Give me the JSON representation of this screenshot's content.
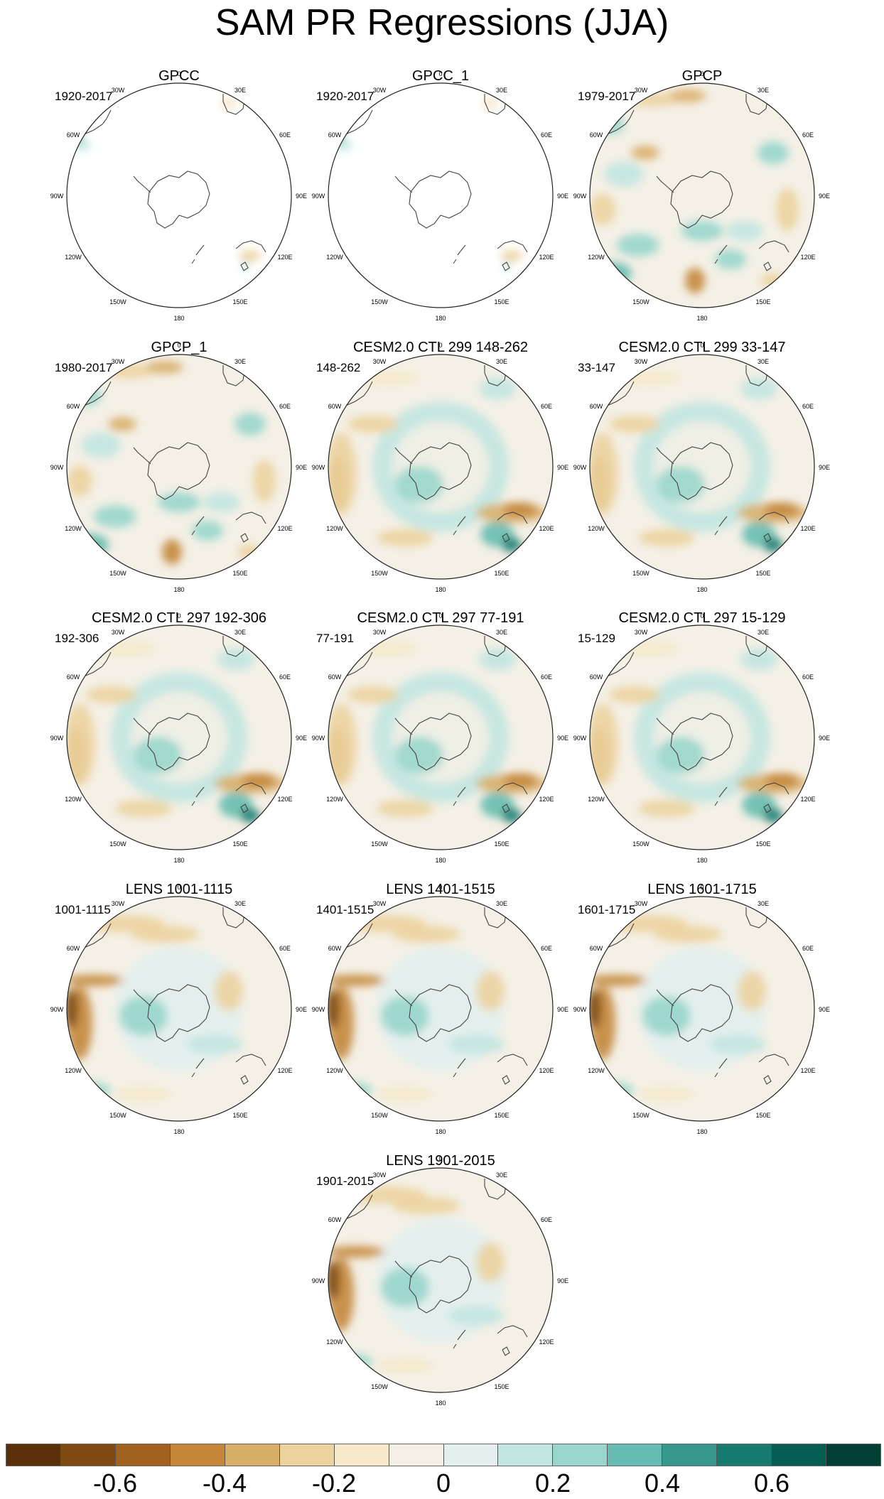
{
  "figure": {
    "title": "SAM PR Regressions (JJA)"
  },
  "map_labels": {
    "lon_0": "0",
    "lon_30e": "30E",
    "lon_60e": "60E",
    "lon_90e": "90E",
    "lon_120e": "120E",
    "lon_150e": "150E",
    "lon_180": "180",
    "lon_150w": "150W",
    "lon_120w": "120W",
    "lon_90w": "90W",
    "lon_60w": "60W",
    "lon_30w": "30W"
  },
  "panels": [
    {
      "title": "GPCC",
      "period": "1920-2017",
      "coverage": "land_only",
      "pattern": "gpcc"
    },
    {
      "title": "GPCC_1",
      "period": "1920-2017",
      "coverage": "land_only",
      "pattern": "gpcc"
    },
    {
      "title": "GPCP",
      "period": "1979-2017",
      "coverage": "global",
      "pattern": "obs"
    },
    {
      "title": "GPCP_1",
      "period": "1980-2017",
      "coverage": "global",
      "pattern": "obs"
    },
    {
      "title": "CESM2.0 CTL 299 148-262",
      "period": "148-262",
      "coverage": "global",
      "pattern": "cesm"
    },
    {
      "title": "CESM2.0 CTL 299 33-147",
      "period": "33-147",
      "coverage": "global",
      "pattern": "cesm"
    },
    {
      "title": "CESM2.0 CTL 297 192-306",
      "period": "192-306",
      "coverage": "global",
      "pattern": "cesm"
    },
    {
      "title": "CESM2.0 CTL 297 77-191",
      "period": "77-191",
      "coverage": "global",
      "pattern": "cesm"
    },
    {
      "title": "CESM2.0 CTL 297 15-129",
      "period": "15-129",
      "coverage": "global",
      "pattern": "cesm"
    },
    {
      "title": "LENS 1001-1115",
      "period": "1001-1115",
      "coverage": "global",
      "pattern": "lens"
    },
    {
      "title": "LENS 1401-1515",
      "period": "1401-1515",
      "coverage": "global",
      "pattern": "lens"
    },
    {
      "title": "LENS 1601-1715",
      "period": "1601-1715",
      "coverage": "global",
      "pattern": "lens"
    },
    {
      "title": "LENS 1901-2015",
      "period": "1901-2015",
      "coverage": "global",
      "pattern": "lens"
    }
  ],
  "colorbar": {
    "colors": [
      "#5a3008",
      "#7e4a12",
      "#a0621e",
      "#c4873a",
      "#d9ae68",
      "#ecd39e",
      "#f6e9ca",
      "#f4f0e6",
      "#e2efee",
      "#c2e6e1",
      "#98d6cc",
      "#66bcb0",
      "#37988d",
      "#167a70",
      "#035d52",
      "#013f35"
    ],
    "labels": [
      "-0.6",
      "-0.4",
      "-0.2",
      "0",
      "0.2",
      "0.4",
      "0.6"
    ],
    "label_values": [
      -0.6,
      -0.4,
      -0.2,
      0,
      0.2,
      0.4,
      0.6
    ],
    "range": [
      -0.8,
      0.8
    ]
  }
}
